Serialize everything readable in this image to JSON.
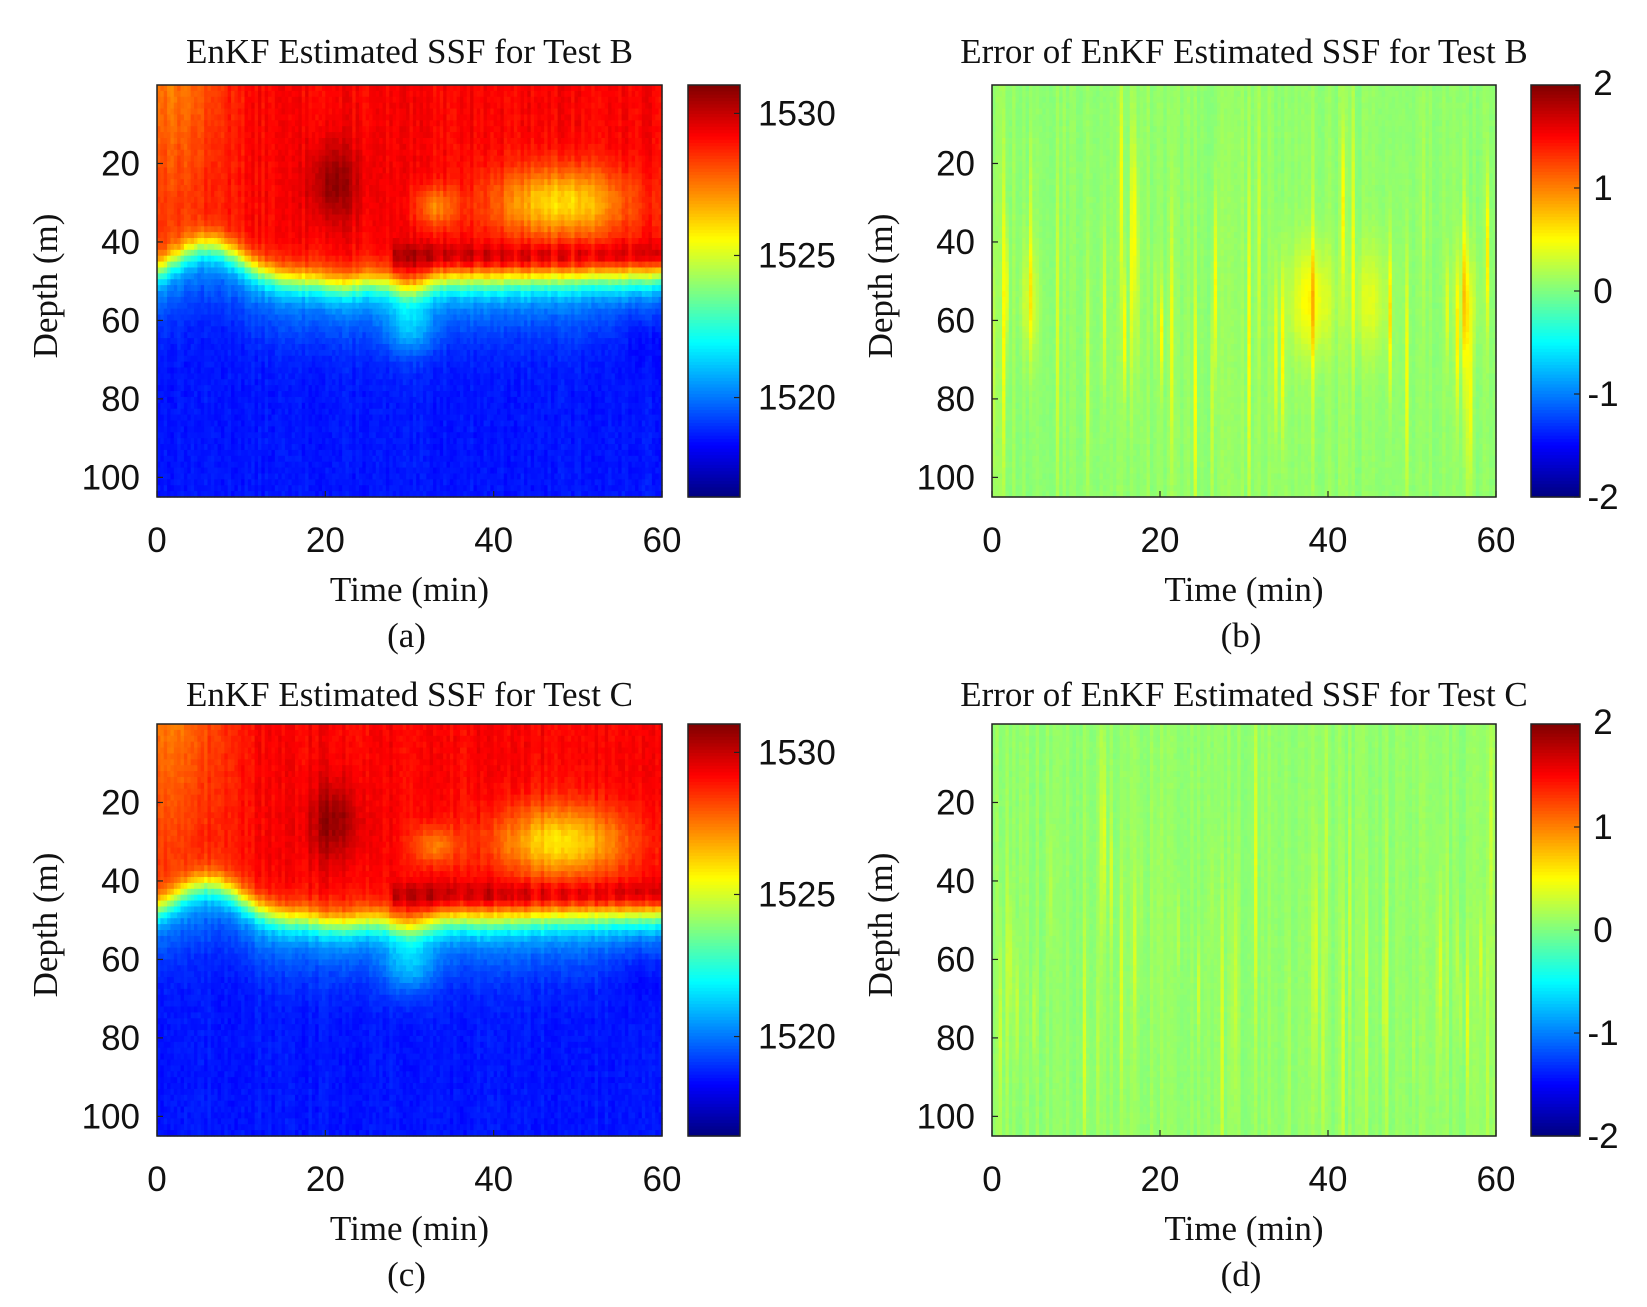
{
  "panels": [
    {
      "id": "a",
      "title": "EnKF Estimated SSF for Test B",
      "xlabel": "Time (min)",
      "ylabel": "Depth (m)",
      "sublabel": "(a)",
      "kind": "ssf",
      "variant": "B"
    },
    {
      "id": "b",
      "title": "Error of EnKF Estimated SSF for Test B",
      "xlabel": "Time (min)",
      "ylabel": "Depth (m)",
      "sublabel": "(b)",
      "kind": "error",
      "variant": "B"
    },
    {
      "id": "c",
      "title": "EnKF Estimated SSF for Test C",
      "xlabel": "Time (min)",
      "ylabel": "Depth (m)",
      "sublabel": "(c)",
      "kind": "ssf",
      "variant": "C"
    },
    {
      "id": "d",
      "title": "Error of EnKF Estimated SSF for Test C",
      "xlabel": "Time (min)",
      "ylabel": "Depth (m)",
      "sublabel": "(d)",
      "kind": "error",
      "variant": "C"
    }
  ],
  "chart_data": [
    {
      "type": "heatmap",
      "title": "EnKF Estimated SSF for Test B",
      "xlabel": "Time (min)",
      "ylabel": "Depth (m)",
      "xlim": [
        0,
        60
      ],
      "ylim": [
        0,
        105
      ],
      "y_reversed": true,
      "x_ticks": [
        0,
        20,
        40,
        60
      ],
      "y_ticks": [
        20,
        40,
        60,
        80,
        100
      ],
      "colorbar": {
        "range": [
          1516.5,
          1531
        ],
        "ticks": [
          1520,
          1525,
          1530
        ],
        "colormap": "jet"
      },
      "approx_thermocline_depth_m": {
        "time_min": [
          0,
          5,
          10,
          15,
          20,
          25,
          30,
          35,
          40,
          45,
          50,
          55,
          60
        ],
        "depth_m": [
          52,
          41,
          43,
          48,
          50,
          52,
          55,
          53,
          53,
          52,
          52,
          51,
          50
        ]
      },
      "grid": false
    },
    {
      "type": "heatmap",
      "title": "Error of EnKF Estimated SSF for Test B",
      "xlabel": "Time (min)",
      "ylabel": "Depth (m)",
      "xlim": [
        0,
        60
      ],
      "ylim": [
        0,
        105
      ],
      "y_reversed": true,
      "x_ticks": [
        0,
        20,
        40,
        60
      ],
      "y_ticks": [
        20,
        40,
        60,
        80,
        100
      ],
      "colorbar": {
        "range": [
          -2,
          2
        ],
        "ticks": [
          -2,
          -1,
          0,
          1,
          2
        ],
        "colormap": "jet"
      },
      "approx_error_range": [
        -0.3,
        0.6
      ],
      "grid": false
    },
    {
      "type": "heatmap",
      "title": "EnKF Estimated SSF for Test C",
      "xlabel": "Time (min)",
      "ylabel": "Depth (m)",
      "xlim": [
        0,
        60
      ],
      "ylim": [
        0,
        105
      ],
      "y_reversed": true,
      "x_ticks": [
        0,
        20,
        40,
        60
      ],
      "y_ticks": [
        20,
        40,
        60,
        80,
        100
      ],
      "colorbar": {
        "range": [
          1516.5,
          1531
        ],
        "ticks": [
          1520,
          1525,
          1530
        ],
        "colormap": "jet"
      },
      "approx_thermocline_depth_m": {
        "time_min": [
          0,
          5,
          10,
          15,
          20,
          25,
          30,
          35,
          40,
          45,
          50,
          55,
          60
        ],
        "depth_m": [
          52,
          41,
          43,
          48,
          50,
          52,
          55,
          53,
          53,
          52,
          52,
          51,
          50
        ]
      },
      "grid": false
    },
    {
      "type": "heatmap",
      "title": "Error of EnKF Estimated SSF for Test C",
      "xlabel": "Time (min)",
      "ylabel": "Depth (m)",
      "xlim": [
        0,
        60
      ],
      "ylim": [
        0,
        105
      ],
      "y_reversed": true,
      "x_ticks": [
        0,
        20,
        40,
        60
      ],
      "y_ticks": [
        20,
        40,
        60,
        80,
        100
      ],
      "colorbar": {
        "range": [
          -2,
          2
        ],
        "ticks": [
          -2,
          -1,
          0,
          1,
          2
        ],
        "colormap": "jet"
      },
      "approx_error_range": [
        -0.2,
        0.4
      ],
      "grid": false
    }
  ]
}
